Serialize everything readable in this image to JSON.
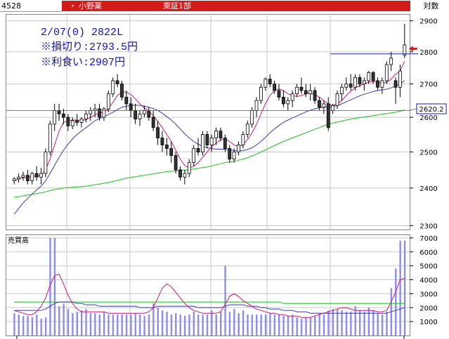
{
  "header": {
    "code": "4528",
    "dot": "・",
    "name": "小野薬",
    "market": "東証1部",
    "scale_mode": "対数"
  },
  "annotation": {
    "line1": "2/07(0) 2822L",
    "line2": "※損切り:2793.5円",
    "line3": "※利食い:2907円"
  },
  "price_panel": {
    "ticks": [
      "2900",
      "2800",
      "2700",
      "2600",
      "2500",
      "2400",
      "2300"
    ],
    "tick_values": [
      2900,
      2800,
      2700,
      2600,
      2500,
      2400,
      2300
    ],
    "current_label": "2620.2",
    "current_value": 2620.2,
    "stop_loss_value": 2793.5
  },
  "volume_panel": {
    "label": "売買高",
    "ticks": [
      "7000",
      "6000",
      "5000",
      "4000",
      "3000",
      "2000",
      "1000"
    ],
    "tick_values": [
      7000,
      6000,
      5000,
      4000,
      3000,
      2000,
      1000
    ]
  },
  "colors": {
    "header_bar": "#d51a1a",
    "candle_up": "#ffffff",
    "candle_down": "#333333",
    "ma_short": "#d4147a",
    "ma_mid": "#3a3ac0",
    "ma_long": "#19c419",
    "volume_bar": "#8c8cf0",
    "arrow": "#d51a1a",
    "annotation_text": "#1010d0"
  },
  "chart_data": {
    "type": "candlestick",
    "ohlc": [
      [
        2420,
        2430,
        2410,
        2425
      ],
      [
        2425,
        2440,
        2415,
        2430
      ],
      [
        2430,
        2445,
        2420,
        2435
      ],
      [
        2435,
        2450,
        2410,
        2420
      ],
      [
        2420,
        2445,
        2410,
        2440
      ],
      [
        2440,
        2460,
        2420,
        2430
      ],
      [
        2430,
        2455,
        2410,
        2440
      ],
      [
        2440,
        2510,
        2430,
        2500
      ],
      [
        2500,
        2590,
        2490,
        2580
      ],
      [
        2580,
        2640,
        2560,
        2620
      ],
      [
        2620,
        2640,
        2590,
        2610
      ],
      [
        2610,
        2625,
        2580,
        2600
      ],
      [
        2600,
        2610,
        2560,
        2575
      ],
      [
        2575,
        2600,
        2565,
        2590
      ],
      [
        2590,
        2610,
        2575,
        2585
      ],
      [
        2585,
        2600,
        2570,
        2595
      ],
      [
        2595,
        2620,
        2585,
        2610
      ],
      [
        2610,
        2630,
        2590,
        2620
      ],
      [
        2620,
        2640,
        2600,
        2625
      ],
      [
        2625,
        2640,
        2590,
        2600
      ],
      [
        2600,
        2630,
        2590,
        2625
      ],
      [
        2625,
        2680,
        2615,
        2670
      ],
      [
        2670,
        2720,
        2660,
        2710
      ],
      [
        2710,
        2730,
        2690,
        2700
      ],
      [
        2700,
        2710,
        2650,
        2660
      ],
      [
        2660,
        2680,
        2620,
        2640
      ],
      [
        2640,
        2660,
        2600,
        2620
      ],
      [
        2620,
        2640,
        2580,
        2595
      ],
      [
        2595,
        2620,
        2575,
        2610
      ],
      [
        2610,
        2635,
        2600,
        2620
      ],
      [
        2620,
        2630,
        2590,
        2600
      ],
      [
        2600,
        2620,
        2560,
        2570
      ],
      [
        2570,
        2590,
        2520,
        2540
      ],
      [
        2540,
        2560,
        2500,
        2520
      ],
      [
        2520,
        2540,
        2490,
        2510
      ],
      [
        2510,
        2530,
        2470,
        2490
      ],
      [
        2490,
        2500,
        2440,
        2450
      ],
      [
        2450,
        2460,
        2420,
        2430
      ],
      [
        2430,
        2450,
        2410,
        2440
      ],
      [
        2440,
        2480,
        2430,
        2470
      ],
      [
        2470,
        2520,
        2460,
        2510
      ],
      [
        2510,
        2540,
        2490,
        2500
      ],
      [
        2500,
        2560,
        2490,
        2550
      ],
      [
        2550,
        2560,
        2510,
        2520
      ],
      [
        2520,
        2550,
        2500,
        2540
      ],
      [
        2540,
        2570,
        2520,
        2560
      ],
      [
        2560,
        2570,
        2530,
        2540
      ],
      [
        2540,
        2550,
        2500,
        2510
      ],
      [
        2510,
        2520,
        2470,
        2480
      ],
      [
        2480,
        2510,
        2470,
        2500
      ],
      [
        2500,
        2530,
        2490,
        2520
      ],
      [
        2520,
        2560,
        2510,
        2550
      ],
      [
        2550,
        2590,
        2540,
        2580
      ],
      [
        2580,
        2630,
        2570,
        2620
      ],
      [
        2620,
        2660,
        2600,
        2650
      ],
      [
        2650,
        2700,
        2640,
        2690
      ],
      [
        2690,
        2720,
        2680,
        2715
      ],
      [
        2715,
        2730,
        2690,
        2700
      ],
      [
        2700,
        2710,
        2670,
        2680
      ],
      [
        2680,
        2700,
        2650,
        2660
      ],
      [
        2660,
        2680,
        2630,
        2640
      ],
      [
        2640,
        2660,
        2620,
        2650
      ],
      [
        2650,
        2680,
        2630,
        2670
      ],
      [
        2670,
        2700,
        2660,
        2690
      ],
      [
        2690,
        2720,
        2670,
        2680
      ],
      [
        2680,
        2700,
        2660,
        2670
      ],
      [
        2670,
        2700,
        2650,
        2680
      ],
      [
        2680,
        2690,
        2640,
        2650
      ],
      [
        2650,
        2660,
        2620,
        2630
      ],
      [
        2630,
        2650,
        2610,
        2640
      ],
      [
        2640,
        2660,
        2560,
        2570
      ],
      [
        2620,
        2640,
        2610,
        2635
      ],
      [
        2635,
        2680,
        2625,
        2670
      ],
      [
        2670,
        2700,
        2650,
        2690
      ],
      [
        2690,
        2720,
        2680,
        2700
      ],
      [
        2700,
        2730,
        2680,
        2690
      ],
      [
        2690,
        2730,
        2680,
        2720
      ],
      [
        2720,
        2730,
        2690,
        2700
      ],
      [
        2700,
        2720,
        2680,
        2710
      ],
      [
        2710,
        2740,
        2700,
        2735
      ],
      [
        2735,
        2740,
        2700,
        2710
      ],
      [
        2710,
        2720,
        2680,
        2690
      ],
      [
        2690,
        2720,
        2670,
        2710
      ],
      [
        2710,
        2770,
        2700,
        2760
      ],
      [
        2760,
        2800,
        2740,
        2780
      ],
      [
        2710,
        2720,
        2640,
        2690
      ],
      [
        2690,
        2760,
        2660,
        2740
      ],
      [
        2790,
        2890,
        2780,
        2822
      ]
    ],
    "ma_short": [
      2420,
      2425,
      2428,
      2430,
      2432,
      2433,
      2434,
      2450,
      2480,
      2520,
      2560,
      2585,
      2590,
      2592,
      2592,
      2590,
      2593,
      2600,
      2608,
      2612,
      2615,
      2625,
      2645,
      2665,
      2675,
      2675,
      2668,
      2655,
      2640,
      2628,
      2618,
      2605,
      2588,
      2570,
      2550,
      2530,
      2505,
      2480,
      2462,
      2455,
      2460,
      2470,
      2485,
      2500,
      2515,
      2525,
      2535,
      2538,
      2530,
      2520,
      2515,
      2520,
      2535,
      2555,
      2580,
      2610,
      2640,
      2665,
      2680,
      2685,
      2680,
      2670,
      2665,
      2662,
      2665,
      2670,
      2672,
      2668,
      2660,
      2650,
      2640,
      2635,
      2640,
      2650,
      2665,
      2678,
      2688,
      2695,
      2700,
      2705,
      2708,
      2706,
      2703,
      2705,
      2715,
      2730,
      2740,
      2770
    ],
    "ma_mid": [
      2330,
      2345,
      2360,
      2372,
      2384,
      2395,
      2405,
      2420,
      2440,
      2462,
      2485,
      2505,
      2522,
      2537,
      2550,
      2560,
      2570,
      2580,
      2590,
      2596,
      2602,
      2608,
      2615,
      2623,
      2630,
      2633,
      2635,
      2636,
      2635,
      2633,
      2630,
      2626,
      2620,
      2612,
      2602,
      2592,
      2580,
      2566,
      2552,
      2540,
      2530,
      2522,
      2516,
      2512,
      2510,
      2508,
      2508,
      2508,
      2506,
      2504,
      2503,
      2504,
      2507,
      2512,
      2520,
      2530,
      2542,
      2555,
      2566,
      2576,
      2585,
      2592,
      2598,
      2604,
      2610,
      2616,
      2621,
      2625,
      2628,
      2630,
      2631,
      2632,
      2635,
      2640,
      2646,
      2652,
      2658,
      2664,
      2669,
      2673,
      2677,
      2680,
      2682,
      2684,
      2688,
      2694,
      2700,
      2710
    ],
    "ma_long": [
      2375,
      2377,
      2379,
      2381,
      2383,
      2385,
      2387,
      2390,
      2393,
      2396,
      2398,
      2400,
      2401,
      2402,
      2403,
      2404,
      2405,
      2407,
      2409,
      2411,
      2413,
      2415,
      2418,
      2421,
      2424,
      2427,
      2429,
      2431,
      2433,
      2435,
      2437,
      2439,
      2441,
      2443,
      2445,
      2446,
      2447,
      2448,
      2449,
      2450,
      2452,
      2454,
      2456,
      2458,
      2461,
      2464,
      2467,
      2470,
      2472,
      2474,
      2477,
      2480,
      2484,
      2489,
      2494,
      2500,
      2506,
      2512,
      2518,
      2524,
      2530,
      2535,
      2540,
      2545,
      2550,
      2555,
      2560,
      2565,
      2570,
      2575,
      2580,
      2583,
      2586,
      2589,
      2592,
      2595,
      2597,
      2599,
      2601,
      2603,
      2605,
      2607,
      2609,
      2611,
      2613,
      2615,
      2618,
      2622
    ],
    "volume": [
      1600,
      1500,
      1400,
      1400,
      1300,
      1500,
      1200,
      1300,
      7000,
      7000,
      2100,
      2300,
      1900,
      1600,
      1700,
      1800,
      1900,
      1600,
      1600,
      1500,
      1700,
      1500,
      1500,
      1500,
      1500,
      1500,
      1500,
      1600,
      1500,
      1400,
      1500,
      2300,
      2000,
      1800,
      1700,
      1500,
      1600,
      1500,
      1400,
      1500,
      1700,
      1500,
      1500,
      1500,
      1800,
      1500,
      1700,
      5000,
      1700,
      1900,
      1600,
      1800,
      1500,
      1500,
      1500,
      1500,
      1500,
      1600,
      1500,
      1500,
      1400,
      1400,
      1500,
      1300,
      1200,
      1300,
      1300,
      1400,
      1600,
      1500,
      1800,
      1900,
      1900,
      1800,
      1700,
      1700,
      2100,
      1800,
      1700,
      2000,
      1800,
      1600,
      1500,
      1700,
      3400,
      4800,
      6800,
      6800
    ],
    "vol_ma_short": [
      1800,
      1700,
      1600,
      1500,
      1500,
      1700,
      2100,
      2700,
      3600,
      4300,
      4400,
      3700,
      2900,
      2300,
      1900,
      1700,
      1700,
      1700,
      1700,
      1700,
      1700,
      1600,
      1600,
      1600,
      1600,
      1600,
      1600,
      1600,
      1600,
      1600,
      1700,
      2000,
      2700,
      3400,
      3700,
      3500,
      3100,
      2700,
      2300,
      2000,
      1800,
      1700,
      1600,
      1600,
      1600,
      1600,
      1700,
      2200,
      2800,
      3000,
      2800,
      2500,
      2300,
      2100,
      1900,
      1800,
      1700,
      1600,
      1600,
      1500,
      1500,
      1400,
      1400,
      1400,
      1300,
      1300,
      1300,
      1400,
      1500,
      1600,
      1700,
      1800,
      1900,
      2000,
      2000,
      1900,
      1800,
      1800,
      1800,
      1800,
      1800,
      1700,
      1700,
      1800,
      2400,
      3100,
      4000,
      4100
    ],
    "vol_ma_mid": [
      1800,
      1800,
      1800,
      1800,
      1800,
      1800,
      1800,
      1900,
      2100,
      2300,
      2400,
      2400,
      2400,
      2400,
      2300,
      2300,
      2200,
      2200,
      2200,
      2100,
      2100,
      2100,
      2100,
      2100,
      2100,
      2100,
      2100,
      2100,
      2000,
      2000,
      2000,
      2000,
      2100,
      2100,
      2100,
      2100,
      2100,
      2100,
      2100,
      2100,
      2100,
      2000,
      2000,
      2000,
      2000,
      2000,
      2000,
      2100,
      2200,
      2200,
      2200,
      2200,
      2100,
      2100,
      2100,
      2000,
      2000,
      1900,
      1900,
      1900,
      1800,
      1800,
      1800,
      1700,
      1700,
      1700,
      1600,
      1600,
      1600,
      1600,
      1600,
      1600,
      1600,
      1600,
      1600,
      1600,
      1600,
      1600,
      1600,
      1600,
      1600,
      1600,
      1600,
      1600,
      1700,
      1800,
      1900,
      2000
    ],
    "vol_ma_long": [
      2400,
      2400,
      2400,
      2400,
      2400,
      2400,
      2400,
      2400,
      2400,
      2400,
      2400,
      2400,
      2400,
      2400,
      2400,
      2400,
      2400,
      2400,
      2400,
      2400,
      2400,
      2400,
      2400,
      2400,
      2400,
      2400,
      2400,
      2400,
      2400,
      2400,
      2400,
      2400,
      2400,
      2400,
      2400,
      2400,
      2400,
      2400,
      2400,
      2400,
      2400,
      2400,
      2400,
      2400,
      2400,
      2400,
      2400,
      2400,
      2400,
      2400,
      2400,
      2400,
      2400,
      2400,
      2400,
      2400,
      2400,
      2400,
      2400,
      2400,
      2300,
      2300,
      2300,
      2300,
      2300,
      2300,
      2300,
      2300,
      2300,
      2300,
      2300,
      2300,
      2300,
      2300,
      2300,
      2300,
      2300,
      2300,
      2300,
      2300,
      2300,
      2300,
      2300,
      2300,
      2300,
      2300,
      2300,
      2300
    ],
    "ylim": [
      2290,
      2920
    ],
    "vol_ylim": [
      0,
      7200
    ]
  }
}
